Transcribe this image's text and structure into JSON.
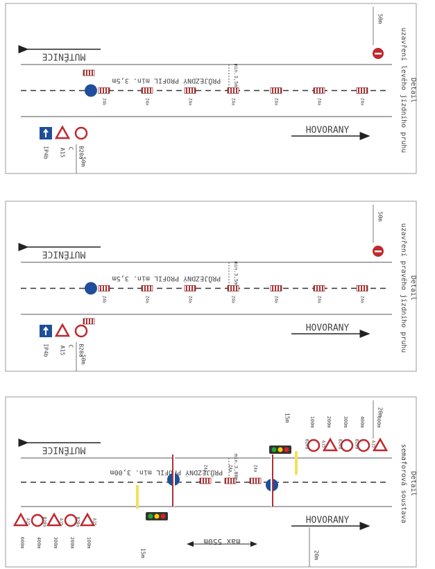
{
  "panels": [
    {
      "title": "Detail",
      "subtitle": "uzavření levého jízdního pruhu",
      "town_left": "MUTĚNICE",
      "town_right": "HOVORANY",
      "profile": "PRŮJEZDNÝ PROFIL min. 3,5m",
      "width_note": "min.3,5m",
      "distance_top": "50m",
      "distance_bottom": "50m",
      "signs": [
        "IP4b",
        "A15",
        "B20a"
      ],
      "sign_notes": [
        "C"
      ],
      "cones": [
        "Z4b",
        "Z4a",
        "Z4a",
        "Z4a",
        "Z4a",
        "Z4a",
        "Z4a"
      ]
    },
    {
      "title": "Detail",
      "subtitle": "uzavření pravého jízdního pruhu",
      "town_left": "MUTĚNICE",
      "town_right": "HOVORANY",
      "profile": "PRŮJEZDNÝ PROFIL min. 3,5m",
      "width_note": "min.3,5m",
      "distance_top": "50m",
      "distance_bottom": "50m",
      "signs": [
        "IP4b",
        "A15",
        "B20a"
      ],
      "sign_notes": [
        "C"
      ],
      "cones": [
        "Z4b",
        "Z4a",
        "Z4a",
        "Z4a",
        "Z4a",
        "Z4a",
        "Z4a"
      ]
    },
    {
      "title": "Detail",
      "subtitle": "semaforová soustava",
      "town_left": "MUTĚNICE",
      "town_right": "HOVORANY",
      "profile": "PRŮJEZDNÝ PROFIL min. 3,00m",
      "width_note": "min.3,00m",
      "distance_top": "20m",
      "distance_bottom": "20m",
      "signal_distances": [
        "15m",
        "15m"
      ],
      "max_length": "max 550m",
      "signs": [
        "A15",
        "B20a",
        "A15",
        "B20a",
        "A15"
      ],
      "sign_notes": [
        "600m",
        "400m",
        "300m",
        "200m",
        "100m"
      ],
      "signs_top": [
        "A15",
        "B20a",
        "B20a",
        "A15",
        "B20a"
      ],
      "sign_top_notes": [
        "600m",
        "400m",
        "300m",
        "200m",
        "100m"
      ],
      "cones": [
        "Z4a",
        "Z4a",
        "Z4a"
      ]
    }
  ]
}
